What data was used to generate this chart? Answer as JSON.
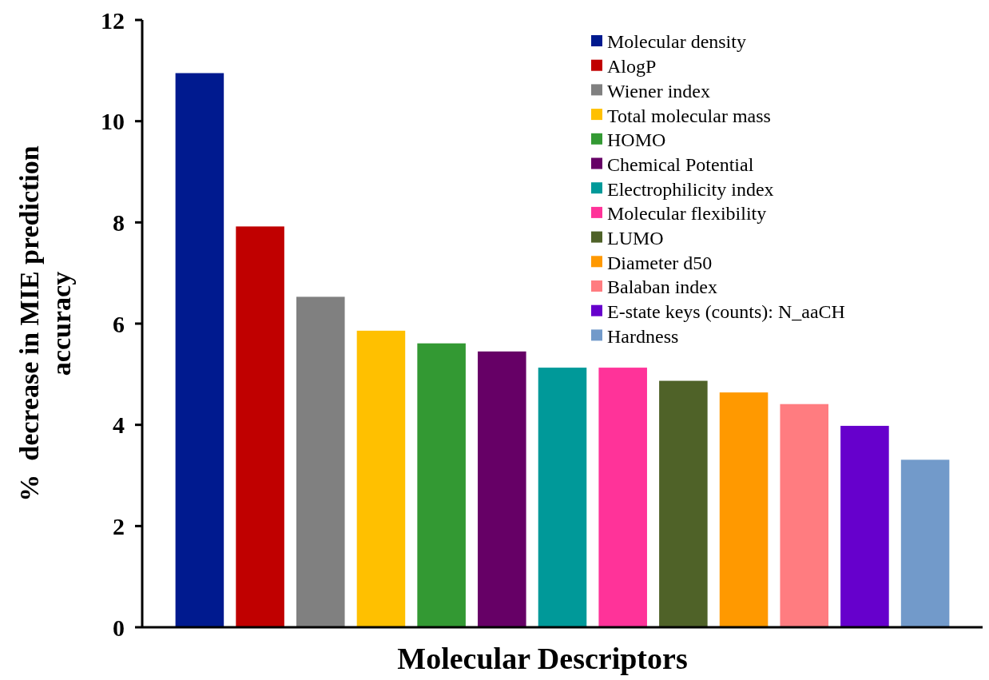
{
  "chart_data": {
    "type": "bar",
    "xlabel": "Molecular Descriptors",
    "ylabel": "%  decrease in MIE prediction accuracy",
    "categories": [
      null,
      null,
      null,
      null,
      null,
      null,
      null,
      null,
      null,
      null,
      null,
      null,
      null
    ],
    "ylim": [
      0,
      12
    ],
    "yticks": [
      0,
      2,
      4,
      6,
      8,
      10,
      12
    ],
    "grid": false,
    "legend": "top right",
    "series": [
      {
        "name": "Molecular density",
        "color": "#001a8f",
        "values": [
          10.95,
          null,
          null,
          null,
          null,
          null,
          null,
          null,
          null,
          null,
          null,
          null,
          null
        ]
      },
      {
        "name": "AlogP",
        "color": "#c00000",
        "values": [
          null,
          7.92,
          null,
          null,
          null,
          null,
          null,
          null,
          null,
          null,
          null,
          null,
          null
        ]
      },
      {
        "name": "Wiener index",
        "color": "#808080",
        "values": [
          null,
          null,
          6.53,
          null,
          null,
          null,
          null,
          null,
          null,
          null,
          null,
          null,
          null
        ]
      },
      {
        "name": "Total molecular mass",
        "color": "#ffc000",
        "values": [
          null,
          null,
          null,
          5.86,
          null,
          null,
          null,
          null,
          null,
          null,
          null,
          null,
          null
        ]
      },
      {
        "name": "HOMO",
        "color": "#339933",
        "values": [
          null,
          null,
          null,
          null,
          5.61,
          null,
          null,
          null,
          null,
          null,
          null,
          null,
          null
        ]
      },
      {
        "name": "Chemical Potential",
        "color": "#660066",
        "values": [
          null,
          null,
          null,
          null,
          null,
          5.45,
          null,
          null,
          null,
          null,
          null,
          null,
          null
        ]
      },
      {
        "name": "Electrophilicity index",
        "color": "#009999",
        "values": [
          null,
          null,
          null,
          null,
          null,
          null,
          5.13,
          null,
          null,
          null,
          null,
          null,
          null
        ]
      },
      {
        "name": "Molecular flexibility",
        "color": "#ff3399",
        "values": [
          null,
          null,
          null,
          null,
          null,
          null,
          null,
          5.13,
          null,
          null,
          null,
          null,
          null
        ]
      },
      {
        "name": "LUMO",
        "color": "#4f6228",
        "values": [
          null,
          null,
          null,
          null,
          null,
          null,
          null,
          null,
          4.87,
          null,
          null,
          null,
          null
        ]
      },
      {
        "name": "Diameter d50",
        "color": "#ff9900",
        "values": [
          null,
          null,
          null,
          null,
          null,
          null,
          null,
          null,
          null,
          4.64,
          null,
          null,
          null
        ]
      },
      {
        "name": "Balaban index",
        "color": "#ff7c80",
        "values": [
          null,
          null,
          null,
          null,
          null,
          null,
          null,
          null,
          null,
          null,
          4.41,
          null,
          null
        ]
      },
      {
        "name": "E-state keys (counts): N_aaCH",
        "color": "#6600cc",
        "values": [
          null,
          null,
          null,
          null,
          null,
          null,
          null,
          null,
          null,
          null,
          null,
          3.98,
          null
        ]
      },
      {
        "name": "Hardness",
        "color": "#729aca",
        "values": [
          null,
          null,
          null,
          null,
          null,
          null,
          null,
          null,
          null,
          null,
          null,
          null,
          3.31
        ]
      }
    ]
  }
}
